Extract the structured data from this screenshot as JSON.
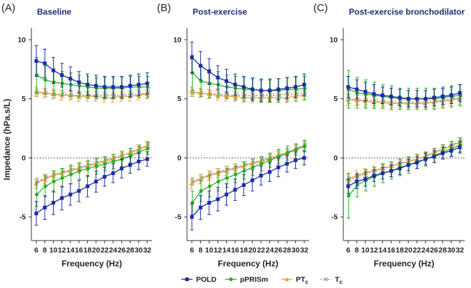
{
  "y_axis_label": "Impedance (hPa.s/L)",
  "chart_data": [
    {
      "type": "line",
      "letter": "(A)",
      "title": "Baseline",
      "xlabel": "Frequency (Hz)",
      "ylabel": "Impedance (hPa.s/L)",
      "x": [
        6,
        8,
        10,
        12,
        14,
        16,
        18,
        20,
        22,
        24,
        26,
        28,
        30,
        32
      ],
      "xtick_labels": [
        "6",
        "8",
        "10",
        "12",
        "14",
        "16",
        "18",
        "20",
        "22",
        "24",
        "26",
        "28",
        "30",
        "32"
      ],
      "ylim": [
        -7,
        11
      ],
      "yticks": [
        -5,
        0,
        5,
        10
      ],
      "ytick_labels": [
        "-5",
        "0",
        "5",
        "10"
      ],
      "reference_line": 0,
      "series": [
        {
          "name": "POLD",
          "component": "upper",
          "values": [
            8.2,
            8.0,
            7.4,
            7.0,
            6.7,
            6.4,
            6.2,
            6.1,
            6.0,
            6.0,
            6.0,
            6.1,
            6.2,
            6.3
          ],
          "errors": [
            1.3,
            1.2,
            1.1,
            1.0,
            1.0,
            0.9,
            0.9,
            0.9,
            0.9,
            0.9,
            0.9,
            0.9,
            0.9,
            0.9
          ]
        },
        {
          "name": "pPRISm",
          "component": "upper",
          "values": [
            7.0,
            6.6,
            6.4,
            6.3,
            6.2,
            6.1,
            6.0,
            5.9,
            5.9,
            5.9,
            5.9,
            6.0,
            6.0,
            6.0
          ],
          "errors": [
            1.5,
            1.2,
            1.1,
            1.0,
            1.0,
            0.9,
            0.9,
            0.9,
            0.9,
            0.9,
            0.9,
            0.9,
            0.9,
            0.9
          ]
        },
        {
          "name": "PTc",
          "component": "upper",
          "values": [
            5.6,
            5.5,
            5.4,
            5.3,
            5.3,
            5.2,
            5.2,
            5.2,
            5.1,
            5.1,
            5.2,
            5.2,
            5.3,
            5.4
          ],
          "errors": [
            0.4,
            0.4,
            0.4,
            0.4,
            0.4,
            0.4,
            0.4,
            0.4,
            0.4,
            0.4,
            0.4,
            0.4,
            0.4,
            0.4
          ]
        },
        {
          "name": "Tc",
          "component": "upper",
          "values": [
            5.5,
            5.5,
            5.4,
            5.4,
            5.3,
            5.3,
            5.3,
            5.3,
            5.3,
            5.3,
            5.3,
            5.4,
            5.4,
            5.5
          ],
          "errors": [
            0.3,
            0.3,
            0.3,
            0.3,
            0.3,
            0.3,
            0.3,
            0.3,
            0.3,
            0.3,
            0.3,
            0.3,
            0.3,
            0.3
          ]
        },
        {
          "name": "POLD",
          "component": "lower",
          "values": [
            -4.7,
            -4.2,
            -3.8,
            -3.4,
            -3.1,
            -2.8,
            -2.4,
            -2.0,
            -1.6,
            -1.3,
            -0.9,
            -0.6,
            -0.3,
            -0.1
          ],
          "errors": [
            1.0,
            1.0,
            1.0,
            1.0,
            0.9,
            0.9,
            0.9,
            0.9,
            0.8,
            0.8,
            0.8,
            0.7,
            0.7,
            0.6
          ]
        },
        {
          "name": "pPRISm",
          "component": "lower",
          "values": [
            -3.1,
            -2.4,
            -2.0,
            -1.7,
            -1.4,
            -1.1,
            -0.9,
            -0.7,
            -0.5,
            -0.3,
            -0.1,
            0.2,
            0.5,
            0.8
          ],
          "errors": [
            1.0,
            0.9,
            0.9,
            0.8,
            0.8,
            0.7,
            0.7,
            0.7,
            0.6,
            0.6,
            0.6,
            0.6,
            0.5,
            0.5
          ]
        },
        {
          "name": "PTc",
          "component": "lower",
          "values": [
            -2.2,
            -1.8,
            -1.5,
            -1.3,
            -1.1,
            -0.9,
            -0.7,
            -0.5,
            -0.3,
            -0.1,
            0.2,
            0.4,
            0.7,
            1.0
          ],
          "errors": [
            0.4,
            0.4,
            0.4,
            0.4,
            0.4,
            0.4,
            0.4,
            0.4,
            0.4,
            0.4,
            0.4,
            0.4,
            0.4,
            0.4
          ]
        },
        {
          "name": "Tc",
          "component": "lower",
          "values": [
            -2.0,
            -1.7,
            -1.4,
            -1.2,
            -1.0,
            -0.8,
            -0.6,
            -0.4,
            -0.2,
            0.0,
            0.2,
            0.5,
            0.8,
            1.1
          ],
          "errors": [
            0.3,
            0.3,
            0.3,
            0.3,
            0.3,
            0.3,
            0.3,
            0.3,
            0.3,
            0.3,
            0.3,
            0.3,
            0.3,
            0.3
          ]
        }
      ]
    },
    {
      "type": "line",
      "letter": "(B)",
      "title": "Post-exercise",
      "xlabel": "Frequency (Hz)",
      "ylabel": "",
      "x": [
        6,
        8,
        10,
        12,
        14,
        16,
        18,
        20,
        22,
        24,
        26,
        28,
        30,
        32
      ],
      "xtick_labels": [
        "6",
        "8",
        "10",
        "12",
        "14",
        "16",
        "18",
        "20",
        "22",
        "24",
        "26",
        "28",
        "30",
        "32"
      ],
      "ylim": [
        -7,
        11
      ],
      "yticks": [
        -5,
        0,
        5,
        10
      ],
      "ytick_labels": [
        "-5",
        "0",
        "5",
        "10"
      ],
      "reference_line": 0,
      "series": [
        {
          "name": "POLD",
          "component": "upper",
          "values": [
            8.5,
            7.8,
            7.3,
            6.8,
            6.5,
            6.2,
            6.0,
            5.8,
            5.7,
            5.7,
            5.8,
            5.9,
            6.0,
            6.2
          ],
          "errors": [
            1.3,
            1.2,
            1.1,
            1.0,
            1.0,
            0.9,
            0.9,
            0.9,
            0.9,
            0.9,
            0.9,
            0.9,
            0.9,
            0.9
          ]
        },
        {
          "name": "pPRISm",
          "component": "upper",
          "values": [
            7.2,
            6.5,
            6.3,
            6.2,
            6.0,
            5.9,
            5.8,
            5.8,
            5.7,
            5.7,
            5.7,
            5.8,
            5.8,
            5.9
          ],
          "errors": [
            1.5,
            1.3,
            1.2,
            1.1,
            1.0,
            1.0,
            1.0,
            1.0,
            1.0,
            1.0,
            1.0,
            1.0,
            1.0,
            1.0
          ]
        },
        {
          "name": "PTc",
          "component": "upper",
          "values": [
            5.6,
            5.5,
            5.4,
            5.3,
            5.2,
            5.2,
            5.1,
            5.1,
            5.1,
            5.1,
            5.1,
            5.1,
            5.2,
            5.3
          ],
          "errors": [
            0.4,
            0.4,
            0.4,
            0.4,
            0.4,
            0.4,
            0.4,
            0.4,
            0.4,
            0.4,
            0.4,
            0.4,
            0.4,
            0.4
          ]
        },
        {
          "name": "Tc",
          "component": "upper",
          "values": [
            5.5,
            5.5,
            5.4,
            5.4,
            5.3,
            5.3,
            5.3,
            5.3,
            5.3,
            5.3,
            5.3,
            5.4,
            5.4,
            5.5
          ],
          "errors": [
            0.3,
            0.3,
            0.3,
            0.3,
            0.3,
            0.3,
            0.3,
            0.3,
            0.3,
            0.3,
            0.3,
            0.3,
            0.3,
            0.3
          ]
        },
        {
          "name": "POLD",
          "component": "lower",
          "values": [
            -5.0,
            -4.2,
            -3.8,
            -3.5,
            -3.1,
            -2.7,
            -2.3,
            -1.9,
            -1.5,
            -1.2,
            -0.8,
            -0.5,
            -0.2,
            0.0
          ],
          "errors": [
            1.1,
            1.0,
            1.0,
            1.0,
            0.9,
            0.9,
            0.9,
            0.9,
            0.8,
            0.8,
            0.8,
            0.7,
            0.7,
            0.6
          ]
        },
        {
          "name": "pPRISm",
          "component": "lower",
          "values": [
            -3.8,
            -2.8,
            -2.4,
            -2.0,
            -1.7,
            -1.4,
            -1.1,
            -0.8,
            -0.5,
            -0.2,
            0.1,
            0.4,
            0.7,
            1.0
          ],
          "errors": [
            1.0,
            0.9,
            0.9,
            0.8,
            0.8,
            0.7,
            0.7,
            0.7,
            0.6,
            0.6,
            0.6,
            0.6,
            0.5,
            0.5
          ]
        },
        {
          "name": "PTc",
          "component": "lower",
          "values": [
            -2.2,
            -1.8,
            -1.5,
            -1.3,
            -1.1,
            -0.9,
            -0.7,
            -0.5,
            -0.3,
            -0.1,
            0.2,
            0.4,
            0.7,
            1.0
          ],
          "errors": [
            0.4,
            0.4,
            0.4,
            0.4,
            0.4,
            0.4,
            0.4,
            0.4,
            0.4,
            0.4,
            0.4,
            0.4,
            0.4,
            0.4
          ]
        },
        {
          "name": "Tc",
          "component": "lower",
          "values": [
            -2.0,
            -1.7,
            -1.4,
            -1.2,
            -1.0,
            -0.8,
            -0.6,
            -0.4,
            -0.2,
            0.0,
            0.2,
            0.5,
            0.8,
            1.1
          ],
          "errors": [
            0.3,
            0.3,
            0.3,
            0.3,
            0.3,
            0.3,
            0.3,
            0.3,
            0.3,
            0.3,
            0.3,
            0.3,
            0.3,
            0.3
          ]
        }
      ]
    },
    {
      "type": "line",
      "letter": "(C)",
      "title": "Post-exercise bronchodilator",
      "xlabel": "Frequency (Hz)",
      "ylabel": "",
      "x": [
        6,
        8,
        10,
        12,
        14,
        16,
        18,
        20,
        22,
        24,
        26,
        28,
        30,
        32
      ],
      "xtick_labels": [
        "6",
        "8",
        "10",
        "12",
        "14",
        "16",
        "18",
        "20",
        "22",
        "24",
        "26",
        "28",
        "30",
        "32"
      ],
      "ylim": [
        -7,
        11
      ],
      "yticks": [
        -5,
        0,
        5,
        10
      ],
      "ytick_labels": [
        "-5",
        "0",
        "5",
        "10"
      ],
      "reference_line": 0,
      "series": [
        {
          "name": "POLD",
          "component": "upper",
          "values": [
            6.0,
            5.8,
            5.6,
            5.4,
            5.3,
            5.2,
            5.1,
            5.0,
            5.0,
            5.0,
            5.1,
            5.2,
            5.3,
            5.5
          ],
          "errors": [
            0.9,
            0.8,
            0.8,
            0.8,
            0.7,
            0.7,
            0.7,
            0.7,
            0.7,
            0.7,
            0.7,
            0.7,
            0.7,
            0.7
          ]
        },
        {
          "name": "pPRISm",
          "component": "upper",
          "values": [
            5.8,
            5.5,
            5.4,
            5.3,
            5.2,
            5.1,
            5.0,
            5.0,
            5.0,
            5.0,
            5.0,
            5.1,
            5.2,
            5.3
          ],
          "errors": [
            1.6,
            1.3,
            1.2,
            1.1,
            1.0,
            1.0,
            0.9,
            0.9,
            0.9,
            0.9,
            0.9,
            0.9,
            0.9,
            0.9
          ]
        },
        {
          "name": "PTc",
          "component": "upper",
          "values": [
            4.9,
            4.9,
            4.8,
            4.7,
            4.7,
            4.6,
            4.6,
            4.6,
            4.6,
            4.6,
            4.7,
            4.8,
            4.9,
            5.0
          ],
          "errors": [
            0.5,
            0.5,
            0.5,
            0.5,
            0.5,
            0.5,
            0.5,
            0.5,
            0.5,
            0.5,
            0.5,
            0.5,
            0.5,
            0.5
          ]
        },
        {
          "name": "Tc",
          "component": "upper",
          "values": [
            5.0,
            4.9,
            4.9,
            4.8,
            4.8,
            4.7,
            4.7,
            4.7,
            4.7,
            4.7,
            4.8,
            4.9,
            5.0,
            5.1
          ],
          "errors": [
            0.4,
            0.4,
            0.4,
            0.4,
            0.4,
            0.4,
            0.4,
            0.4,
            0.4,
            0.4,
            0.4,
            0.4,
            0.4,
            0.4
          ]
        },
        {
          "name": "POLD",
          "component": "lower",
          "values": [
            -2.4,
            -2.0,
            -1.8,
            -1.5,
            -1.3,
            -1.1,
            -0.9,
            -0.6,
            -0.4,
            -0.1,
            0.1,
            0.4,
            0.6,
            0.9
          ],
          "errors": [
            0.6,
            0.6,
            0.6,
            0.5,
            0.5,
            0.5,
            0.5,
            0.5,
            0.5,
            0.5,
            0.5,
            0.5,
            0.5,
            0.5
          ]
        },
        {
          "name": "pPRISm",
          "component": "lower",
          "values": [
            -3.2,
            -2.3,
            -1.9,
            -1.6,
            -1.3,
            -1.1,
            -0.8,
            -0.6,
            -0.3,
            -0.1,
            0.2,
            0.5,
            0.8,
            1.1
          ],
          "errors": [
            1.9,
            1.0,
            0.9,
            0.8,
            0.8,
            0.7,
            0.7,
            0.7,
            0.6,
            0.6,
            0.6,
            0.6,
            0.6,
            0.6
          ]
        },
        {
          "name": "PTc",
          "component": "lower",
          "values": [
            -1.8,
            -1.5,
            -1.3,
            -1.1,
            -0.9,
            -0.7,
            -0.5,
            -0.3,
            -0.1,
            0.1,
            0.4,
            0.7,
            1.0,
            1.3
          ],
          "errors": [
            0.4,
            0.4,
            0.4,
            0.4,
            0.4,
            0.4,
            0.4,
            0.4,
            0.4,
            0.4,
            0.4,
            0.4,
            0.4,
            0.4
          ]
        },
        {
          "name": "Tc",
          "component": "lower",
          "values": [
            -1.9,
            -1.6,
            -1.3,
            -1.1,
            -0.9,
            -0.7,
            -0.5,
            -0.3,
            -0.1,
            0.2,
            0.5,
            0.8,
            1.1,
            1.4
          ],
          "errors": [
            0.3,
            0.3,
            0.3,
            0.3,
            0.3,
            0.3,
            0.3,
            0.3,
            0.3,
            0.3,
            0.3,
            0.3,
            0.3,
            0.3
          ]
        }
      ]
    }
  ],
  "legend": [
    {
      "key": "POLD",
      "label": "POLD",
      "subscript": "",
      "color": "#1c2aa6",
      "marker": "square"
    },
    {
      "key": "pPRISm",
      "label": "pPRISm",
      "subscript": "",
      "color": "#22b022",
      "marker": "circle"
    },
    {
      "key": "PTc",
      "label": "PT",
      "subscript": "c",
      "color": "#e8a13a",
      "marker": "triangle"
    },
    {
      "key": "Tc",
      "label": "T",
      "subscript": "c",
      "color": "#9a9a9a",
      "marker": "cross"
    }
  ]
}
